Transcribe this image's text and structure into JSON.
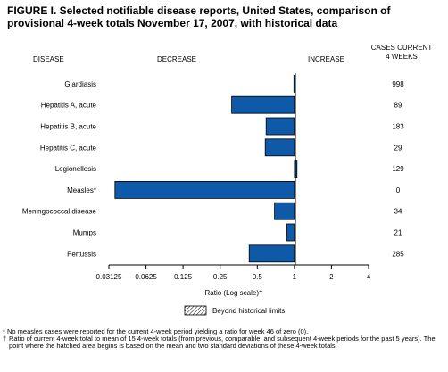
{
  "title": "FIGURE I. Selected notifiable disease reports, United States, comparison of provisional 4-week totals November 17, 2007, with historical data",
  "headers": {
    "disease": "DISEASE",
    "decrease": "DECREASE",
    "increase": "INCREASE",
    "cases_line1": "CASES CURRENT",
    "cases_line2": "4 WEEKS"
  },
  "chart_data": {
    "type": "bar",
    "orientation": "horizontal",
    "x_scale": "log2",
    "xlim": [
      0.03125,
      4
    ],
    "baseline": 1,
    "xlabel": "Ratio (Log scale)†",
    "xticks": [
      0.03125,
      0.0625,
      0.125,
      0.25,
      0.5,
      1,
      2,
      4
    ],
    "xtick_labels": [
      "0.03125",
      "0.0625",
      "0.125",
      "0.25",
      "0.5",
      "1",
      "2",
      "4"
    ],
    "categories": [
      "Giardiasis",
      "Hepatitis A, acute",
      "Hepatitis B, acute",
      "Hepatitis C, acute",
      "Legionellosis",
      "Measles*",
      "Meningococcal disease",
      "Mumps",
      "Pertussis"
    ],
    "values": [
      0.99,
      0.31,
      0.59,
      0.58,
      1.05,
      0.035,
      0.69,
      0.87,
      0.43
    ],
    "cases_current_4_weeks": [
      "998",
      "89",
      "183",
      "29",
      "129",
      "0",
      "34",
      "21",
      "285"
    ],
    "bar_color": "#0f5aa8",
    "legend": {
      "label": "Beyond historical limits",
      "placement": "bottom-center",
      "pattern": "hatched"
    }
  },
  "footnotes": {
    "star": "* No measles cases were reported for the current 4-week period yielding a ratio for week 46 of zero (0).",
    "dagger_symbol": "†",
    "dagger": "Ratio of current 4-week total to mean of 15 4-week totals (from previous, comparable, and subsequent 4-week periods for the past 5 years). The point where the hatched area begins is based on the mean and two standard deviations of these 4-week totals."
  }
}
